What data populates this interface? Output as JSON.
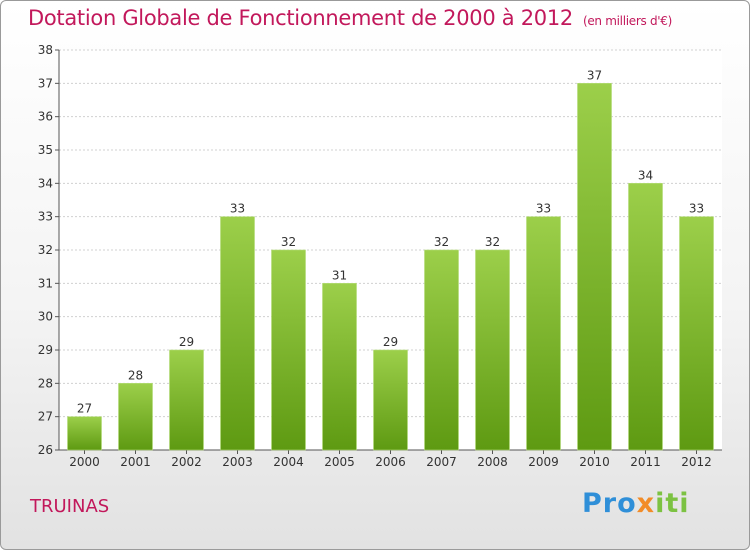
{
  "header": {
    "title": "Dotation Globale de Fonctionnement de 2000 à 2012",
    "subtitle": "(en milliers d'€)"
  },
  "footer": {
    "commune": "TRUINAS",
    "logo_parts": [
      "Pro",
      "x",
      "iti"
    ]
  },
  "colors": {
    "title": "#c2185b",
    "bar_light": "#9ccf4a",
    "bar_dark": "#5e9a12",
    "grid": "#d0d0d0"
  },
  "chart_data": {
    "type": "bar",
    "title": "Dotation Globale de Fonctionnement de 2000 à 2012",
    "subtitle": "(en milliers d'€)",
    "categories": [
      "2000",
      "2001",
      "2002",
      "2003",
      "2004",
      "2005",
      "2006",
      "2007",
      "2008",
      "2009",
      "2010",
      "2011",
      "2012"
    ],
    "values": [
      27,
      28,
      29,
      33,
      32,
      31,
      29,
      32,
      32,
      33,
      37,
      34,
      33
    ],
    "ylim": [
      26,
      38
    ],
    "yticks": [
      26,
      27,
      28,
      29,
      30,
      31,
      32,
      33,
      34,
      35,
      36,
      37,
      38
    ],
    "grid": true,
    "xlabel": "",
    "ylabel": ""
  }
}
